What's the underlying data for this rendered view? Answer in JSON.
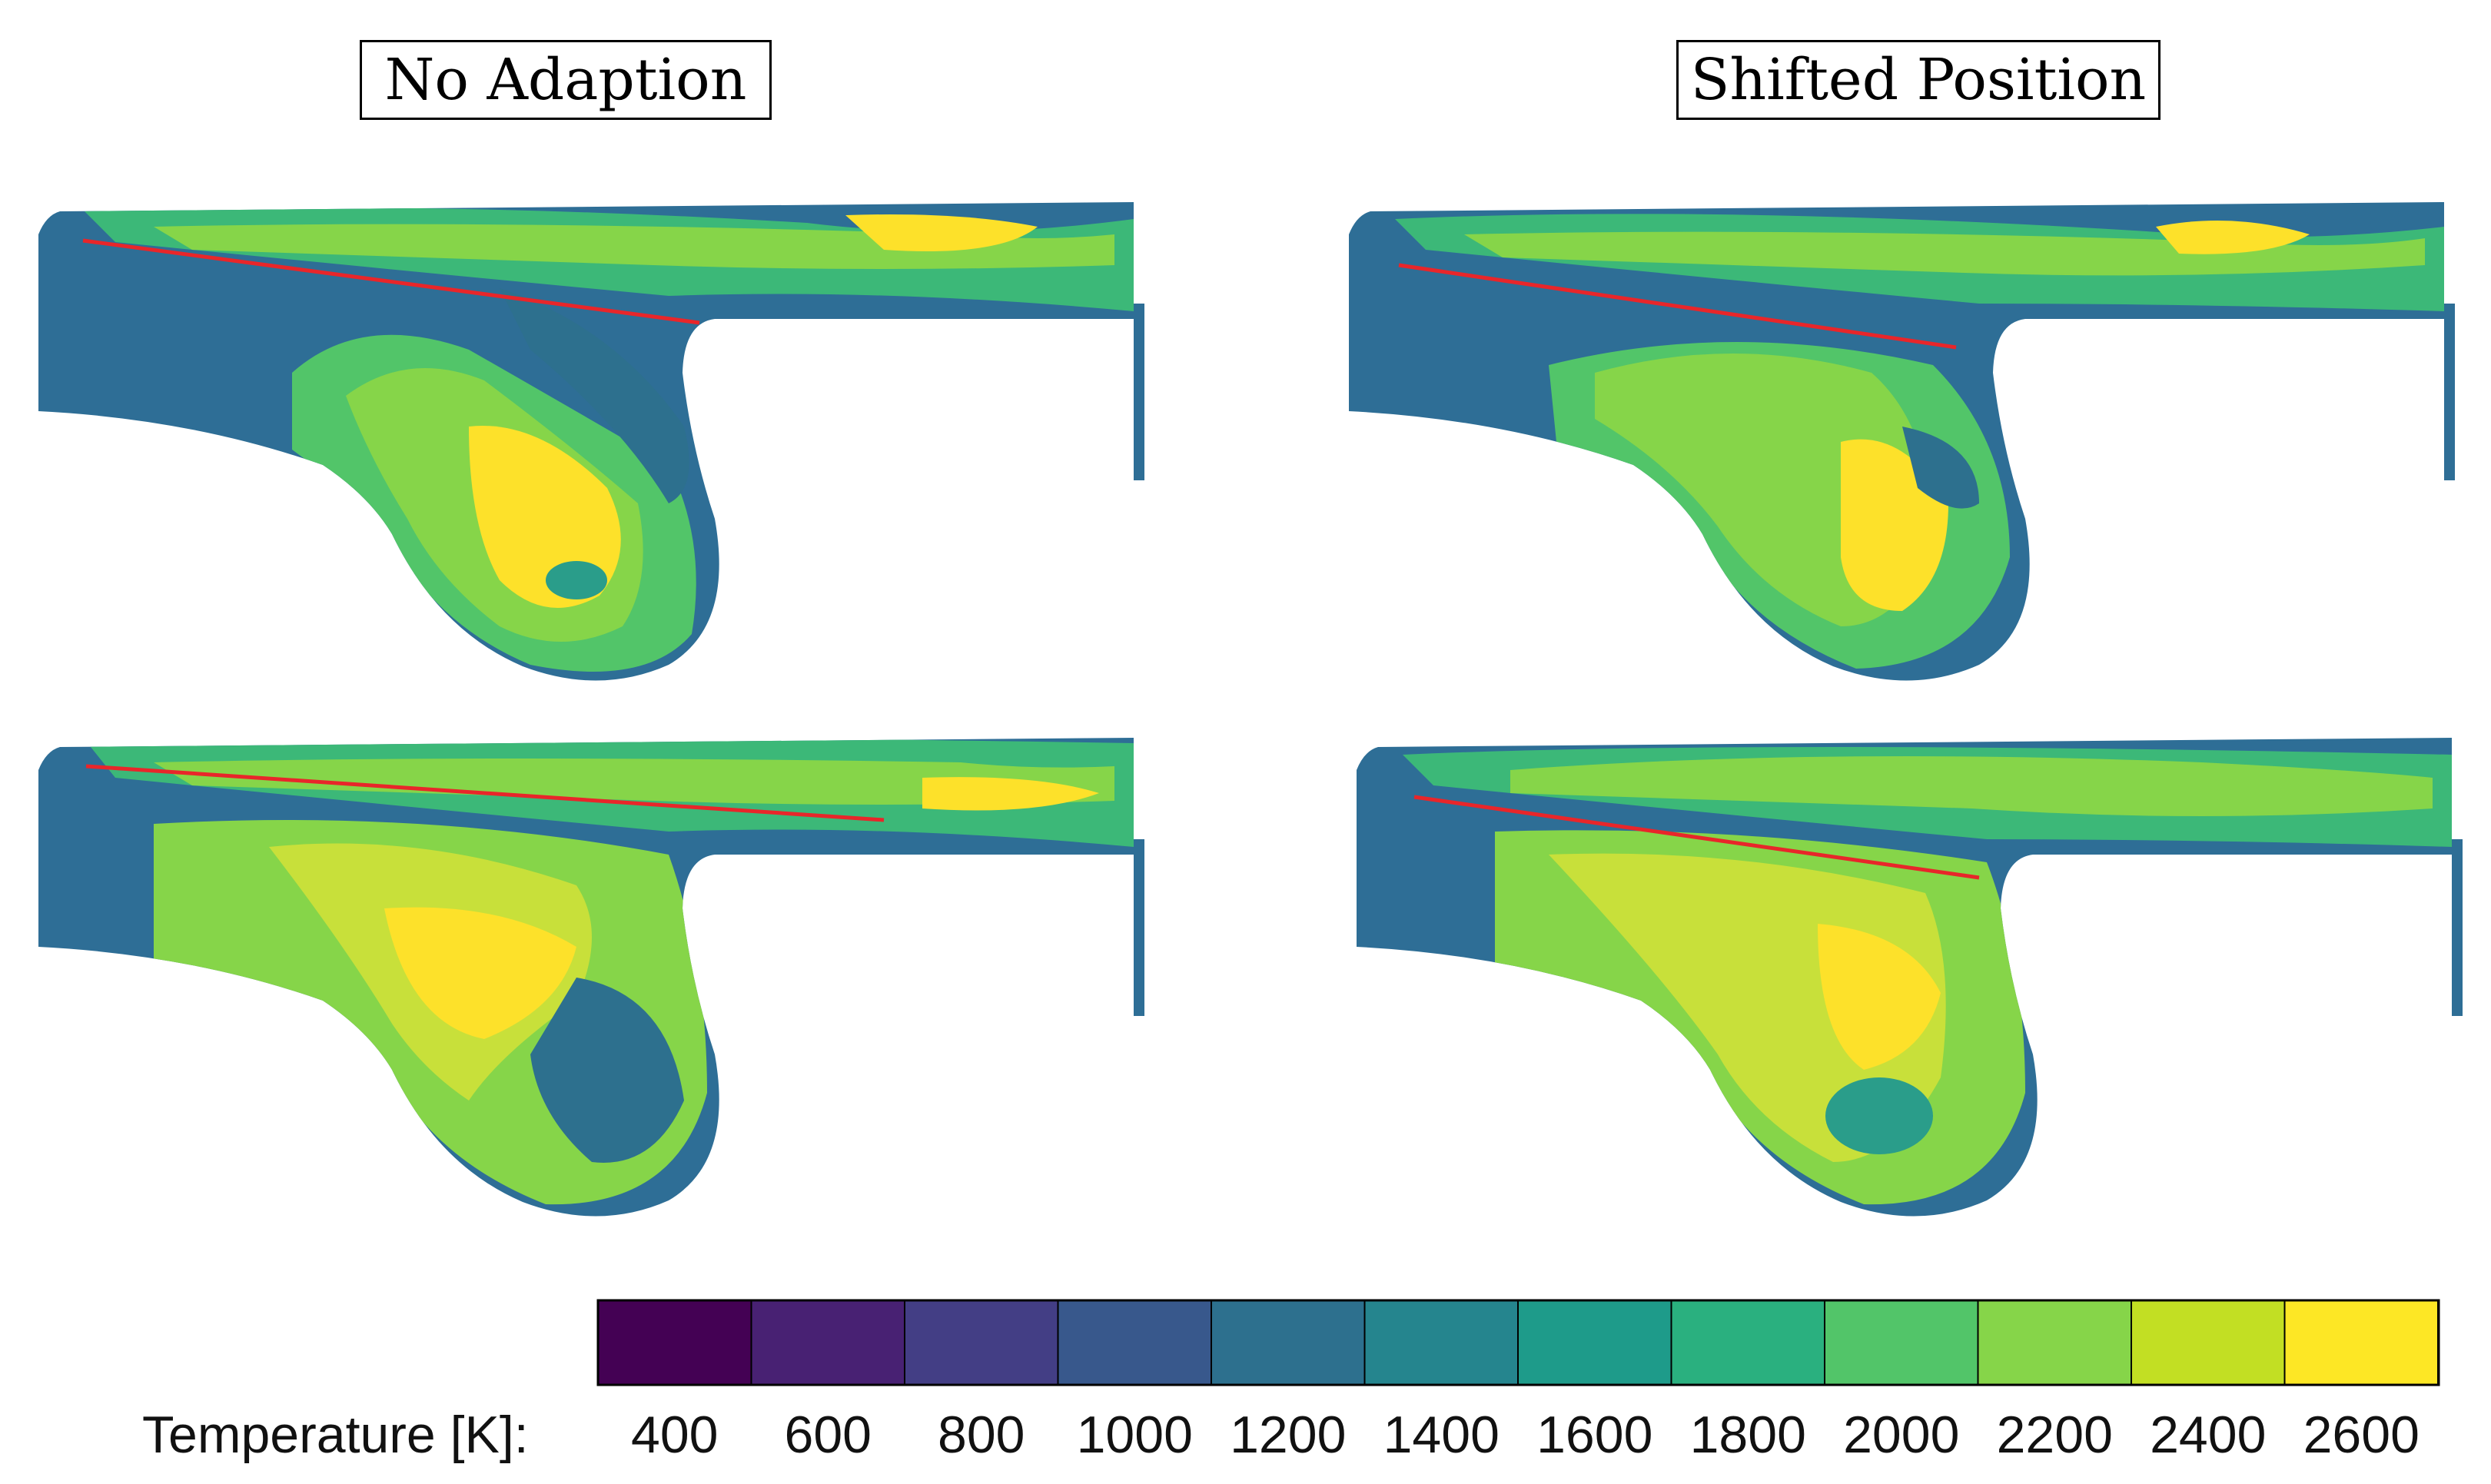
{
  "figure": {
    "titles": {
      "left": "No Adaption",
      "right": "Shifted Position"
    },
    "colorbar": {
      "label": "Temperature [K]:",
      "ticks": [
        "400",
        "600",
        "800",
        "1000",
        "1200",
        "1400",
        "1600",
        "1800",
        "2000",
        "2200",
        "2400",
        "2600"
      ],
      "colors": [
        "#440154",
        "#482173",
        "#433e85",
        "#38588c",
        "#2d708e",
        "#25858e",
        "#1e9b8a",
        "#2ab07f",
        "#52c569",
        "#86d549",
        "#c2df23",
        "#fde725"
      ]
    },
    "palette": {
      "dark_blue": "#2e6e96",
      "teal": "#2a9d8a",
      "green": "#3cb878",
      "light_green": "#7cd155",
      "yellow_green": "#c8e03a",
      "yellow": "#fde12a",
      "marker_line": "#e8262a"
    }
  }
}
